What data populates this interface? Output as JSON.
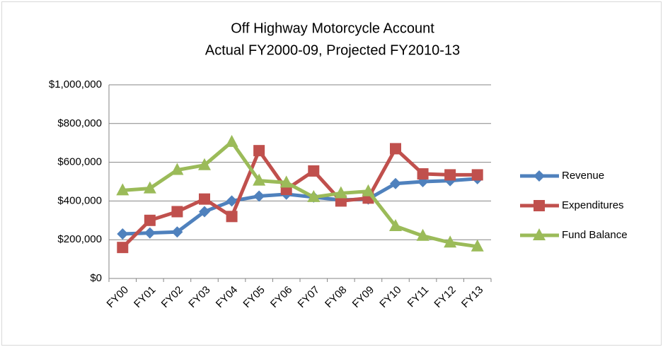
{
  "chart_data": {
    "type": "line",
    "title": "Off Highway Motorcycle Account",
    "subtitle": "Actual FY2000-09, Projected FY2010-13",
    "categories": [
      "FY00",
      "FY01",
      "FY02",
      "FY03",
      "FY04",
      "FY05",
      "FY06",
      "FY07",
      "FY08",
      "FY09",
      "FY10",
      "FY11",
      "FY12",
      "FY13"
    ],
    "series": [
      {
        "name": "Revenue",
        "color": "#4f81bd",
        "marker": "diamond",
        "values": [
          230000,
          235000,
          240000,
          345000,
          400000,
          425000,
          435000,
          420000,
          405000,
          410000,
          490000,
          500000,
          505000,
          515000
        ]
      },
      {
        "name": "Expenditures",
        "color": "#c0504d",
        "marker": "square",
        "values": [
          160000,
          300000,
          345000,
          410000,
          320000,
          660000,
          460000,
          555000,
          400000,
          415000,
          670000,
          540000,
          535000,
          535000
        ]
      },
      {
        "name": "Fund Balance",
        "color": "#9bbb59",
        "marker": "triangle",
        "values": [
          455000,
          465000,
          560000,
          585000,
          705000,
          505000,
          495000,
          420000,
          440000,
          450000,
          270000,
          220000,
          185000,
          165000
        ]
      }
    ],
    "ylim": [
      0,
      1000000
    ],
    "yticks": [
      {
        "value": 0,
        "label": "$0"
      },
      {
        "value": 200000,
        "label": "$200,000"
      },
      {
        "value": 400000,
        "label": "$400,000"
      },
      {
        "value": 600000,
        "label": "$600,000"
      },
      {
        "value": 800000,
        "label": "$800,000"
      },
      {
        "value": 1000000,
        "label": "$1,000,000"
      }
    ],
    "grid": true,
    "legend": "right"
  }
}
